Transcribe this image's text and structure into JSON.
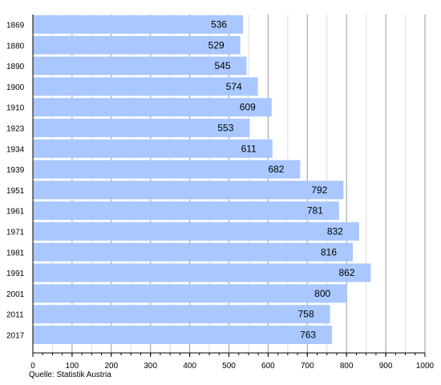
{
  "chart_data": {
    "type": "bar",
    "orientation": "horizontal",
    "categories": [
      "1869",
      "1880",
      "1890",
      "1900",
      "1910",
      "1923",
      "1934",
      "1939",
      "1951",
      "1961",
      "1971",
      "1981",
      "1991",
      "2001",
      "2011",
      "2017"
    ],
    "values": [
      536,
      529,
      545,
      574,
      609,
      553,
      611,
      682,
      792,
      781,
      832,
      816,
      862,
      800,
      758,
      763
    ],
    "xlim": [
      0,
      1000
    ],
    "xticks": [
      0,
      100,
      200,
      300,
      400,
      500,
      600,
      700,
      800,
      900,
      1000
    ],
    "grid": true,
    "bar_color": "#aac8ff",
    "source": "Quelle: Statistik Austria"
  }
}
